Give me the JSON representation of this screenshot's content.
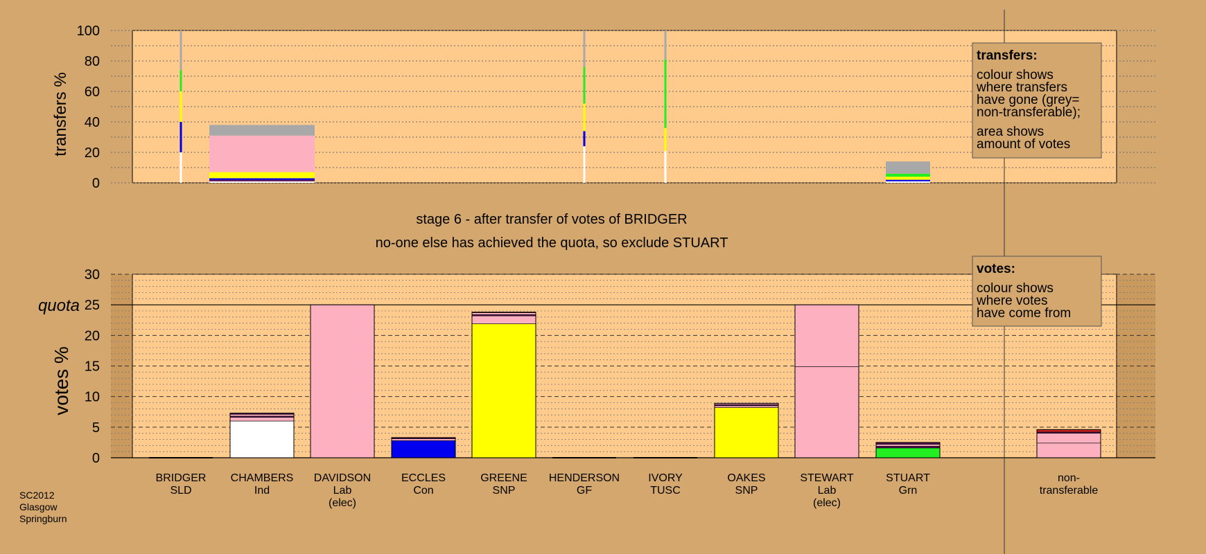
{
  "colors": {
    "background": "#d4a76e",
    "plot_bg": "#fecb8c",
    "white": "#ffffff",
    "blue": "#0000ee",
    "yellow": "#ffff00",
    "pink": "#fdb0c0",
    "green": "#22ee22",
    "grey": "#a8a8a8",
    "purple": "#551155",
    "red": "#cc2222"
  },
  "heading": {
    "line1": "stage 6 - after transfer of votes of BRIDGER",
    "line2": "no-one else has achieved the quota, so exclude STUART"
  },
  "footer": [
    "SC2012",
    "Glasgow",
    "Springburn"
  ],
  "legends": {
    "transfers": {
      "title": "transfers:",
      "paragraphs": [
        [
          "colour shows",
          "where transfers",
          "have gone (grey=",
          "non-transferable);"
        ],
        [
          "area shows",
          "amount of votes"
        ]
      ]
    },
    "votes": {
      "title": "votes:",
      "paragraphs": [
        [
          "colour shows",
          "where votes",
          "have come from"
        ]
      ]
    }
  },
  "chart_data": [
    {
      "type": "bar",
      "name": "transfers",
      "ylabel": "transfers %",
      "ylim": [
        0,
        100
      ],
      "yticks": [
        0,
        20,
        40,
        60,
        80,
        100
      ],
      "series_note": "stacked segments bottom to top, values in %; width = share of transferred votes",
      "columns": [
        {
          "category": "BRIDGER",
          "kind": "line",
          "segments": [
            [
              "white",
              20
            ],
            [
              "blue",
              20
            ],
            [
              "yellow",
              20
            ],
            [
              "green",
              14
            ],
            [
              "grey",
              26
            ]
          ]
        },
        {
          "category": "CHAMBERS",
          "kind": "bar",
          "segments": [
            [
              "white",
              1
            ],
            [
              "purple",
              1
            ],
            [
              "blue",
              1
            ],
            [
              "yellow",
              4
            ],
            [
              "pink",
              24
            ],
            [
              "grey",
              7
            ]
          ]
        },
        {
          "category": "HENDERSON",
          "kind": "line",
          "segments": [
            [
              "white",
              24
            ],
            [
              "blue",
              10
            ],
            [
              "yellow",
              18
            ],
            [
              "green",
              24
            ],
            [
              "grey",
              24
            ]
          ]
        },
        {
          "category": "IVORY",
          "kind": "line",
          "segments": [
            [
              "white",
              21
            ],
            [
              "yellow",
              15
            ],
            [
              "green",
              45
            ],
            [
              "grey",
              19
            ]
          ]
        },
        {
          "category": "STUART",
          "kind": "bar",
          "segments": [
            [
              "white",
              1
            ],
            [
              "blue",
              1
            ],
            [
              "yellow",
              2
            ],
            [
              "green",
              2
            ],
            [
              "grey",
              8
            ]
          ]
        }
      ]
    },
    {
      "type": "bar",
      "name": "votes",
      "ylabel": "votes %",
      "ylim": [
        0,
        30
      ],
      "yticks": [
        0,
        5,
        10,
        15,
        20,
        25,
        30
      ],
      "quota": 25,
      "quota_label": "quota",
      "categories": [
        {
          "name": "BRIDGER",
          "party": "SLD",
          "note": "",
          "segments": []
        },
        {
          "name": "CHAMBERS",
          "party": "Ind",
          "note": "",
          "segments": [
            [
              "white",
              6.0
            ],
            [
              "pink",
              0.6
            ],
            [
              "purple",
              0.2
            ],
            [
              "pink",
              0.3
            ],
            [
              "purple",
              0.2
            ]
          ]
        },
        {
          "name": "DAVIDSON",
          "party": "Lab",
          "note": "(elec)",
          "segments": [
            [
              "pink",
              25.0
            ]
          ]
        },
        {
          "name": "ECCLES",
          "party": "Con",
          "note": "",
          "segments": [
            [
              "blue",
              2.8
            ],
            [
              "pink",
              0.3
            ],
            [
              "purple",
              0.2
            ]
          ]
        },
        {
          "name": "GREENE",
          "party": "SNP",
          "note": "",
          "segments": [
            [
              "yellow",
              21.9
            ],
            [
              "pink",
              1.3
            ],
            [
              "purple",
              0.2
            ],
            [
              "pink",
              0.3
            ],
            [
              "red",
              0.1
            ]
          ]
        },
        {
          "name": "HENDERSON",
          "party": "GF",
          "note": "",
          "segments": []
        },
        {
          "name": "IVORY",
          "party": "TUSC",
          "note": "",
          "segments": []
        },
        {
          "name": "OAKES",
          "party": "SNP",
          "note": "",
          "segments": [
            [
              "yellow",
              8.2
            ],
            [
              "pink",
              0.3
            ],
            [
              "purple",
              0.2
            ],
            [
              "pink",
              0.2
            ]
          ]
        },
        {
          "name": "STEWART",
          "party": "Lab",
          "note": "(elec)",
          "segments": [
            [
              "pink",
              14.9
            ],
            [
              "pink",
              10.1
            ]
          ]
        },
        {
          "name": "STUART",
          "party": "Grn",
          "note": "",
          "segments": [
            [
              "green",
              1.6
            ],
            [
              "purple",
              0.3
            ],
            [
              "pink",
              0.3
            ],
            [
              "purple",
              0.3
            ]
          ]
        },
        {
          "name": "non-",
          "party": "transferable",
          "note": "",
          "segments": [
            [
              "pink",
              2.4
            ],
            [
              "pink",
              1.6
            ],
            [
              "purple",
              0.2
            ],
            [
              "red",
              0.4
            ]
          ]
        }
      ]
    }
  ]
}
